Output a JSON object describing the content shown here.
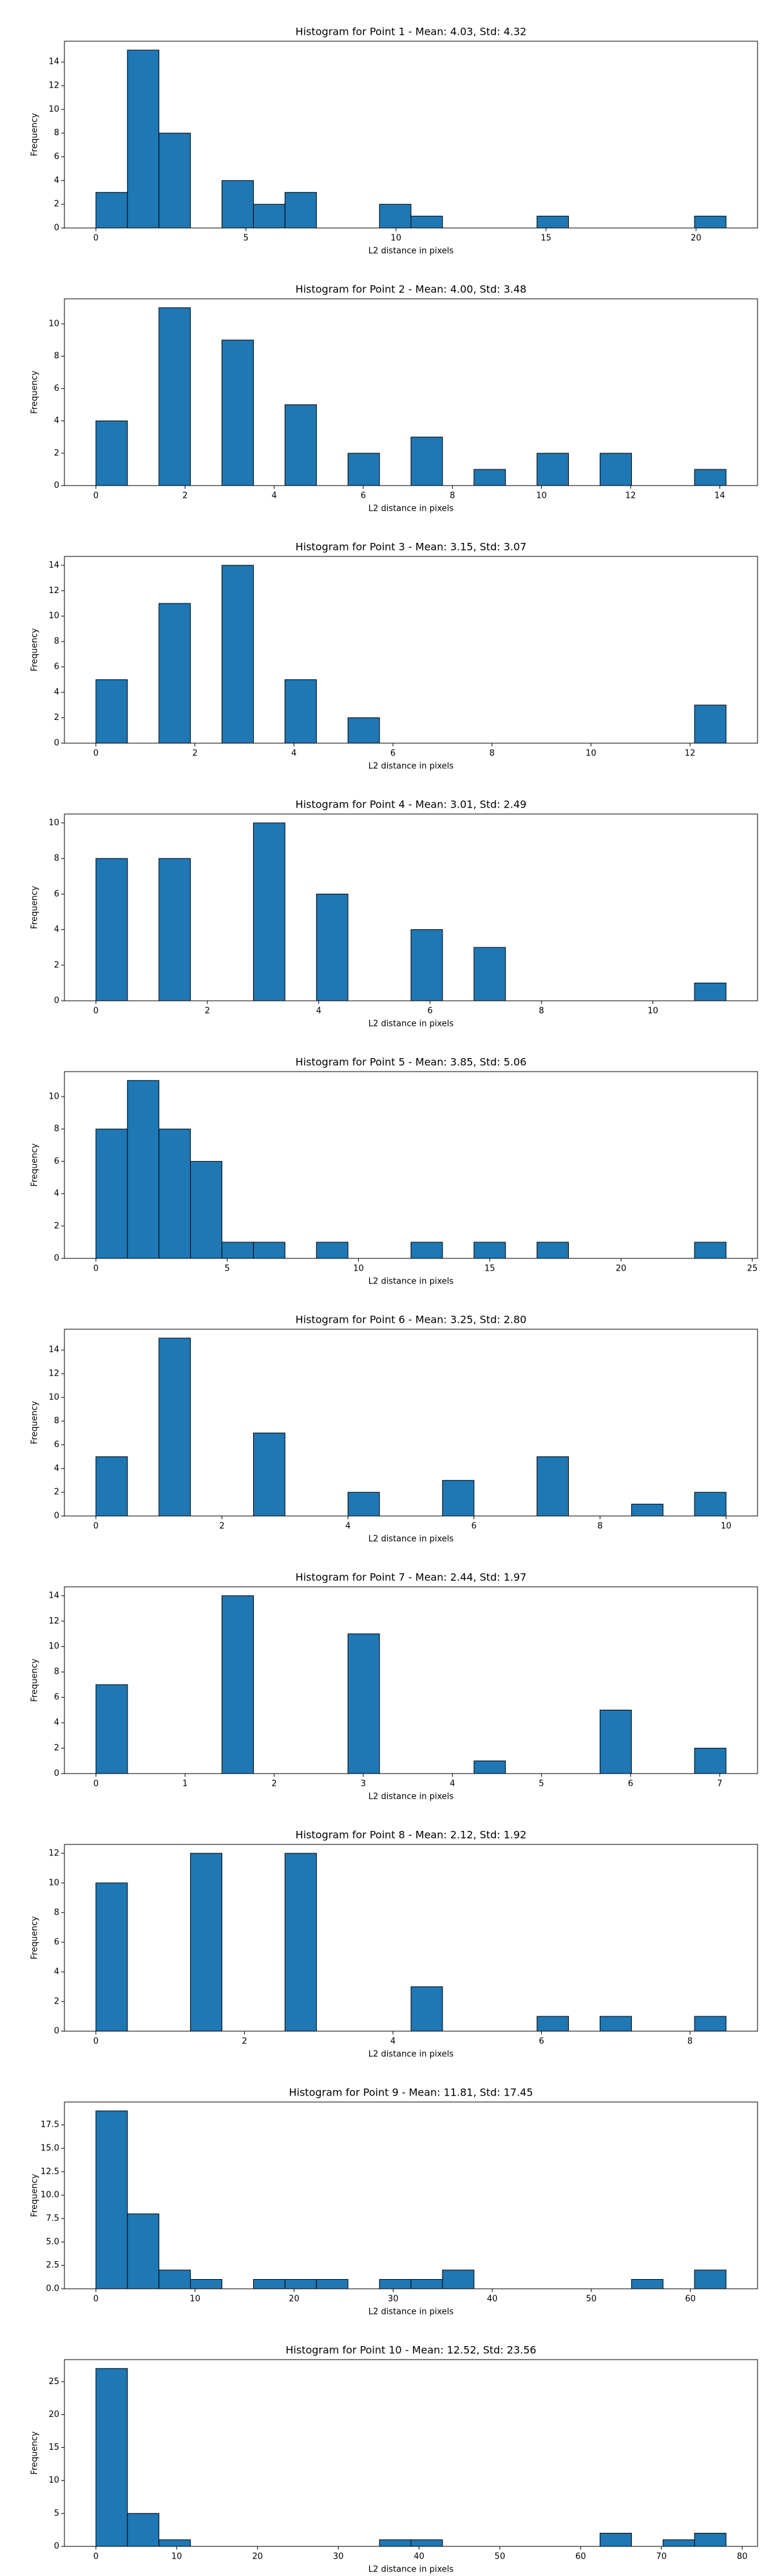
{
  "chart_data": [
    {
      "type": "histogram",
      "title": "Histogram for Point 1 - Mean: 4.03, Std: 4.32",
      "xlabel": "L2 distance in pixels",
      "ylabel": "Frequency",
      "color": "#1f77b4",
      "bins": [
        0,
        1.05,
        2.1,
        3.15,
        4.2,
        5.25,
        6.3,
        7.35,
        8.4,
        9.45,
        10.5,
        11.55,
        12.6,
        13.65,
        14.7,
        15.75,
        16.8,
        17.85,
        18.9,
        19.95,
        21
      ],
      "counts": [
        3,
        15,
        8,
        0,
        4,
        2,
        3,
        0,
        0,
        2,
        1,
        0,
        0,
        0,
        1,
        0,
        0,
        0,
        0,
        1
      ],
      "xlim": [
        -1.05,
        22.05
      ],
      "ylim": [
        0,
        15.75
      ],
      "xticks": [
        0,
        5,
        10,
        15,
        20
      ],
      "yticks": [
        0,
        2,
        4,
        6,
        8,
        10,
        12,
        14
      ]
    },
    {
      "type": "histogram",
      "title": "Histogram for Point 2 - Mean: 4.00, Std: 3.48",
      "xlabel": "L2 distance in pixels",
      "ylabel": "Frequency",
      "color": "#1f77b4",
      "bins": [
        0,
        0.707,
        1.414,
        2.121,
        2.828,
        3.536,
        4.243,
        4.95,
        5.657,
        6.364,
        7.071,
        7.778,
        8.485,
        9.192,
        9.899,
        10.607,
        11.314,
        12.021,
        12.728,
        13.435,
        14.142
      ],
      "counts": [
        4,
        0,
        11,
        0,
        9,
        0,
        5,
        0,
        2,
        0,
        3,
        0,
        1,
        0,
        2,
        0,
        2,
        0,
        0,
        1
      ],
      "xlim": [
        -0.707,
        14.849
      ],
      "ylim": [
        0,
        11.55
      ],
      "xticks": [
        0,
        2,
        4,
        6,
        8,
        10,
        12,
        14
      ],
      "yticks": [
        0,
        2,
        4,
        6,
        8,
        10
      ]
    },
    {
      "type": "histogram",
      "title": "Histogram for Point 3 - Mean: 3.15, Std: 3.07",
      "xlabel": "L2 distance in pixels",
      "ylabel": "Frequency",
      "color": "#1f77b4",
      "bins": [
        0,
        0.636,
        1.273,
        1.909,
        2.546,
        3.182,
        3.818,
        4.455,
        5.091,
        5.728,
        6.364,
        7,
        7.637,
        8.273,
        8.91,
        9.546,
        10.182,
        10.819,
        11.455,
        12.092,
        12.728
      ],
      "counts": [
        5,
        0,
        11,
        0,
        14,
        0,
        5,
        0,
        2,
        0,
        0,
        0,
        0,
        0,
        0,
        0,
        0,
        0,
        0,
        3
      ],
      "xlim": [
        -0.636,
        13.364
      ],
      "ylim": [
        0,
        14.7
      ],
      "xticks": [
        0,
        2,
        4,
        6,
        8,
        10,
        12
      ],
      "yticks": [
        0,
        2,
        4,
        6,
        8,
        10,
        12,
        14
      ]
    },
    {
      "type": "histogram",
      "title": "Histogram for Point 4 - Mean: 3.01, Std: 2.49",
      "xlabel": "L2 distance in pixels",
      "ylabel": "Frequency",
      "color": "#1f77b4",
      "bins": [
        0,
        0.566,
        1.131,
        1.697,
        2.263,
        2.828,
        3.394,
        3.96,
        4.525,
        5.091,
        5.657,
        6.223,
        6.788,
        7.354,
        7.92,
        8.485,
        9.051,
        9.617,
        10.182,
        10.748,
        11.314
      ],
      "counts": [
        8,
        0,
        8,
        0,
        0,
        10,
        0,
        6,
        0,
        0,
        4,
        0,
        3,
        0,
        0,
        0,
        0,
        0,
        0,
        1
      ],
      "xlim": [
        -0.566,
        11.88
      ],
      "ylim": [
        0,
        10.5
      ],
      "xticks": [
        0,
        2,
        4,
        6,
        8,
        10
      ],
      "yticks": [
        0,
        2,
        4,
        6,
        8,
        10
      ]
    },
    {
      "type": "histogram",
      "title": "Histogram for Point 5 - Mean: 3.85, Std: 5.06",
      "xlabel": "L2 distance in pixels",
      "ylabel": "Frequency",
      "color": "#1f77b4",
      "bins": [
        0,
        1.2,
        2.4,
        3.6,
        4.8,
        6,
        7.2,
        8.4,
        9.6,
        10.8,
        12,
        13.2,
        14.4,
        15.6,
        16.8,
        18,
        19.2,
        20.4,
        21.6,
        22.8,
        24
      ],
      "counts": [
        8,
        11,
        8,
        6,
        1,
        1,
        0,
        1,
        0,
        0,
        1,
        0,
        1,
        0,
        1,
        0,
        0,
        0,
        0,
        1
      ],
      "xlim": [
        -1.2,
        25.2
      ],
      "ylim": [
        0,
        11.55
      ],
      "xticks": [
        0,
        5,
        10,
        15,
        20,
        25
      ],
      "yticks": [
        0,
        2,
        4,
        6,
        8,
        10
      ]
    },
    {
      "type": "histogram",
      "title": "Histogram for Point 6 - Mean: 3.25, Std: 2.80",
      "xlabel": "L2 distance in pixels",
      "ylabel": "Frequency",
      "color": "#1f77b4",
      "bins": [
        0,
        0.5,
        1,
        1.5,
        2,
        2.5,
        3,
        3.5,
        4,
        4.5,
        5,
        5.5,
        6,
        6.5,
        7,
        7.5,
        8,
        8.5,
        9,
        9.5,
        10
      ],
      "counts": [
        5,
        0,
        15,
        0,
        0,
        7,
        0,
        0,
        2,
        0,
        0,
        3,
        0,
        0,
        5,
        0,
        0,
        1,
        0,
        2
      ],
      "xlim": [
        -0.5,
        10.5
      ],
      "ylim": [
        0,
        15.75
      ],
      "xticks": [
        0,
        2,
        4,
        6,
        8,
        10
      ],
      "yticks": [
        0,
        2,
        4,
        6,
        8,
        10,
        12,
        14
      ]
    },
    {
      "type": "histogram",
      "title": "Histogram for Point 7 - Mean: 2.44, Std: 1.97",
      "xlabel": "L2 distance in pixels",
      "ylabel": "Frequency",
      "color": "#1f77b4",
      "bins": [
        0,
        0.354,
        0.707,
        1.061,
        1.414,
        1.768,
        2.121,
        2.475,
        2.828,
        3.182,
        3.536,
        3.889,
        4.243,
        4.596,
        4.95,
        5.303,
        5.657,
        6.01,
        6.364,
        6.718,
        7.071
      ],
      "counts": [
        7,
        0,
        0,
        0,
        14,
        0,
        0,
        0,
        11,
        0,
        0,
        0,
        1,
        0,
        0,
        0,
        5,
        0,
        0,
        2
      ],
      "xlim": [
        -0.354,
        7.425
      ],
      "ylim": [
        0,
        14.7
      ],
      "xticks": [
        0,
        1,
        2,
        3,
        4,
        5,
        6,
        7
      ],
      "yticks": [
        0,
        2,
        4,
        6,
        8,
        10,
        12,
        14
      ]
    },
    {
      "type": "histogram",
      "title": "Histogram for Point 8 - Mean: 2.12, Std: 1.92",
      "xlabel": "L2 distance in pixels",
      "ylabel": "Frequency",
      "color": "#1f77b4",
      "bins": [
        0,
        0.424,
        0.849,
        1.273,
        1.697,
        2.121,
        2.546,
        2.97,
        3.394,
        3.818,
        4.243,
        4.667,
        5.091,
        5.515,
        5.94,
        6.364,
        6.788,
        7.212,
        7.637,
        8.061,
        8.485
      ],
      "counts": [
        10,
        0,
        0,
        12,
        0,
        0,
        12,
        0,
        0,
        0,
        3,
        0,
        0,
        0,
        1,
        0,
        1,
        0,
        0,
        1
      ],
      "xlim": [
        -0.424,
        8.909
      ],
      "ylim": [
        0,
        12.6
      ],
      "xticks": [
        0,
        2,
        4,
        6,
        8
      ],
      "yticks": [
        0,
        2,
        4,
        6,
        8,
        10,
        12
      ]
    },
    {
      "type": "histogram",
      "title": "Histogram for Point 9 - Mean: 11.81, Std: 17.45",
      "xlabel": "L2 distance in pixels",
      "ylabel": "Frequency",
      "color": "#1f77b4",
      "bins": [
        0,
        3.18,
        6.36,
        9.54,
        12.72,
        15.9,
        19.08,
        22.26,
        25.44,
        28.62,
        31.8,
        34.98,
        38.16,
        41.34,
        44.52,
        47.7,
        50.88,
        54.06,
        57.24,
        60.42,
        63.6
      ],
      "counts": [
        19,
        8,
        2,
        1,
        0,
        1,
        1,
        1,
        0,
        1,
        1,
        2,
        0,
        0,
        0,
        0,
        0,
        1,
        0,
        2
      ],
      "xlim": [
        -3.18,
        66.78
      ],
      "ylim": [
        0,
        19.95
      ],
      "xticks": [
        0,
        10,
        20,
        30,
        40,
        50,
        60
      ],
      "yticks": [
        {
          "value": 0,
          "label": "0.0"
        },
        {
          "value": 2.5,
          "label": "2.5"
        },
        {
          "value": 5,
          "label": "5.0"
        },
        {
          "value": 7.5,
          "label": "7.5"
        },
        {
          "value": 10,
          "label": "10.0"
        },
        {
          "value": 12.5,
          "label": "12.5"
        },
        {
          "value": 15,
          "label": "15.0"
        },
        {
          "value": 17.5,
          "label": "17.5"
        }
      ]
    },
    {
      "type": "histogram",
      "title": "Histogram for Point 10 - Mean: 12.52, Std: 23.56",
      "xlabel": "L2 distance in pixels",
      "ylabel": "Frequency",
      "color": "#1f77b4",
      "bins": [
        0,
        3.9,
        7.8,
        11.7,
        15.6,
        19.5,
        23.4,
        27.3,
        31.2,
        35.1,
        39,
        42.9,
        46.8,
        50.7,
        54.6,
        58.5,
        62.4,
        66.3,
        70.2,
        74.1,
        78
      ],
      "counts": [
        27,
        5,
        1,
        0,
        0,
        0,
        0,
        0,
        0,
        1,
        1,
        0,
        0,
        0,
        0,
        0,
        2,
        0,
        1,
        2
      ],
      "xlim": [
        -3.9,
        81.9
      ],
      "ylim": [
        0,
        28.35
      ],
      "xticks": [
        0,
        10,
        20,
        30,
        40,
        50,
        60,
        70,
        80
      ],
      "yticks": [
        0,
        5,
        10,
        15,
        20,
        25
      ]
    }
  ]
}
